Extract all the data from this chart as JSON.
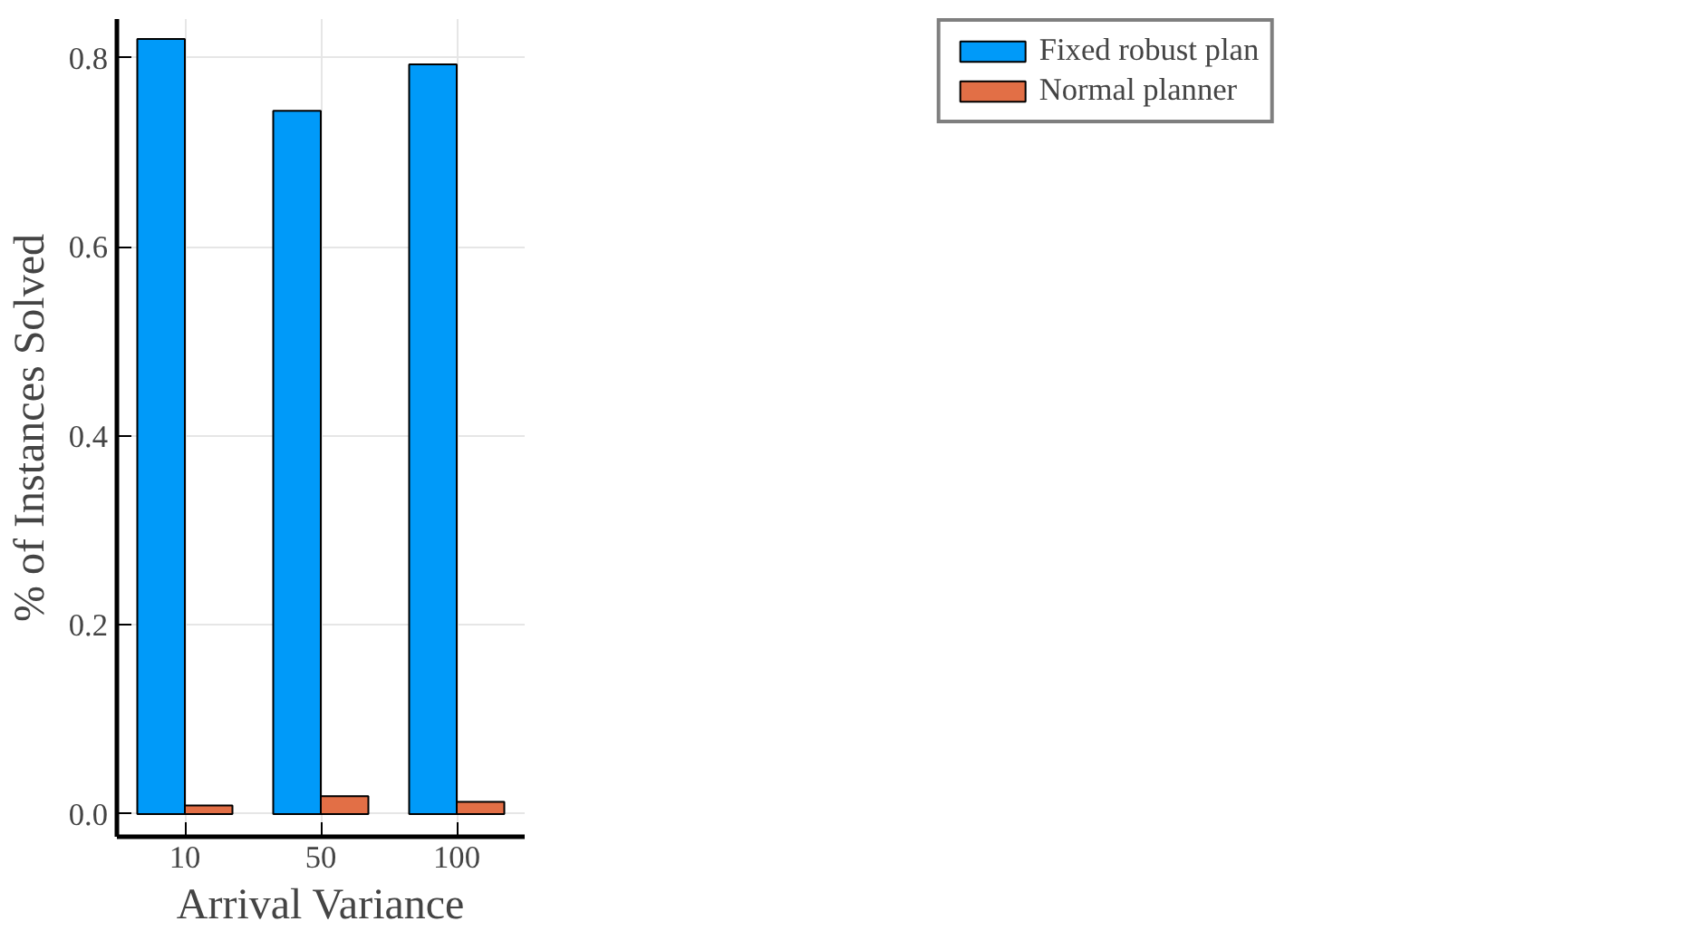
{
  "chart_data": {
    "type": "bar",
    "xlabel": "Arrival Variance",
    "ylabel": "% of Instances Solved",
    "categories": [
      "10",
      "50",
      "100"
    ],
    "series": [
      {
        "name": "Fixed robust plan",
        "color": "#009af9",
        "values": [
          0.82,
          0.744,
          0.793
        ]
      },
      {
        "name": "Normal planner",
        "color": "#e26f46",
        "values": [
          0.009,
          0.019,
          0.013
        ]
      }
    ],
    "ylim": [
      -0.024,
      0.841
    ],
    "yticks": [
      {
        "value": 0,
        "label": "0.0"
      },
      0.2,
      0.4,
      0.6,
      0.8
    ],
    "grid": true,
    "legend": "top right"
  }
}
